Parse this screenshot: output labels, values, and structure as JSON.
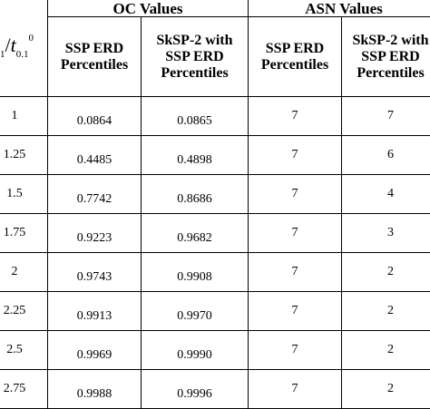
{
  "table": {
    "group_headers": {
      "oc": "OC Values",
      "asn": "ASN Values"
    },
    "ratio_header": {
      "subscript_left": "1",
      "slash": "/",
      "t": "t",
      "subscript": "0.1",
      "superscript": "0"
    },
    "column_headers": [
      {
        "line1": "SSP ERD",
        "line2": "Percentiles",
        "line3": ""
      },
      {
        "line1": "SkSP-2 with",
        "line2": "SSP ERD",
        "line3": "Percentiles"
      },
      {
        "line1": "SSP ERD",
        "line2": "Percentiles",
        "line3": ""
      },
      {
        "line1": "SkSP-2 with",
        "line2": "SSP ERD",
        "line3": "Percentiles"
      }
    ],
    "rows": [
      {
        "ratio": "1",
        "oc_ssp": "0.0864",
        "oc_sksp": "0.0865",
        "asn_ssp": "7",
        "asn_sksp": "7"
      },
      {
        "ratio": "1.25",
        "oc_ssp": "0.4485",
        "oc_sksp": "0.4898",
        "asn_ssp": "7",
        "asn_sksp": "6"
      },
      {
        "ratio": "1.5",
        "oc_ssp": "0.7742",
        "oc_sksp": "0.8686",
        "asn_ssp": "7",
        "asn_sksp": "4"
      },
      {
        "ratio": "1.75",
        "oc_ssp": "0.9223",
        "oc_sksp": "0.9682",
        "asn_ssp": "7",
        "asn_sksp": "3"
      },
      {
        "ratio": "2",
        "oc_ssp": "0.9743",
        "oc_sksp": "0.9908",
        "asn_ssp": "7",
        "asn_sksp": "2"
      },
      {
        "ratio": "2.25",
        "oc_ssp": "0.9913",
        "oc_sksp": "0.9970",
        "asn_ssp": "7",
        "asn_sksp": "2"
      },
      {
        "ratio": "2.5",
        "oc_ssp": "0.9969",
        "oc_sksp": "0.9990",
        "asn_ssp": "7",
        "asn_sksp": "2"
      },
      {
        "ratio": "2.75",
        "oc_ssp": "0.9988",
        "oc_sksp": "0.9996",
        "asn_ssp": "7",
        "asn_sksp": "2"
      }
    ]
  }
}
